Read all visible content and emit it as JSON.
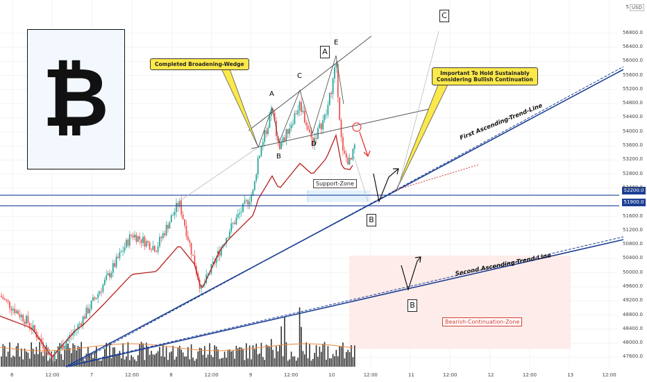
{
  "currency": "USD",
  "currency_prefix": "5",
  "logo_glyph": "₿",
  "colors": {
    "up": "#26a69a",
    "down": "#ef5350",
    "trend": "#1c3f94",
    "ma_red": "#b71c1c",
    "ma_orange": "#f0883e",
    "support": "#1c3f94",
    "bear_zone": "#fdecea",
    "support_zone": "#e3f2fd",
    "note": "#fbe84a"
  },
  "annotations": {
    "completed_wedge": "Completed Broadening-Wedge",
    "important_note_1": "Important To Hold Sustainably",
    "important_note_2": "Considering Bullish Continuation",
    "support_zone": "Support-Zone",
    "bearish_zone": "Bearish-Continuation-Zone",
    "first_trend": "First Ascending-Trend-Line",
    "second_trend": "Second Ascending-Trend-Line",
    "wave_labels": {
      "A1": "A",
      "A2": "A",
      "B1": "B",
      "B2": "B",
      "B3": "B",
      "B4": "B",
      "C1": "C",
      "C2": "C",
      "D": "D",
      "E": "E"
    }
  },
  "price_tags": {
    "upper": "52200.0",
    "lower": "51900.0"
  },
  "chart_data": {
    "type": "candlestick",
    "y_ticks": [
      "56800.0",
      "56400.0",
      "56000.0",
      "55600.0",
      "55200.0",
      "54800.0",
      "54400.0",
      "54000.0",
      "53600.0",
      "53200.0",
      "52800.0",
      "52400.0",
      "51600.0",
      "51200.0",
      "50800.0",
      "50400.0",
      "50000.0",
      "49600.0",
      "49200.0",
      "48800.0",
      "48400.0",
      "48000.0",
      "47600.0"
    ],
    "x_ticks": [
      "6",
      "12:00",
      "7",
      "12:00",
      "8",
      "12:00",
      "9",
      "12:00",
      "10",
      "12:00",
      "11",
      "12:00",
      "12",
      "12:00",
      "13",
      "12:00"
    ],
    "ylim": [
      47450,
      57150
    ],
    "support_levels": [
      52200.0,
      51900.0
    ],
    "key_points": [
      {
        "label": "start",
        "price": 47600
      },
      {
        "label": "wedge_start",
        "price": 53300
      },
      {
        "label": "wedge_peak_E",
        "price": 55900
      },
      {
        "label": "current",
        "price": 53600
      }
    ]
  }
}
